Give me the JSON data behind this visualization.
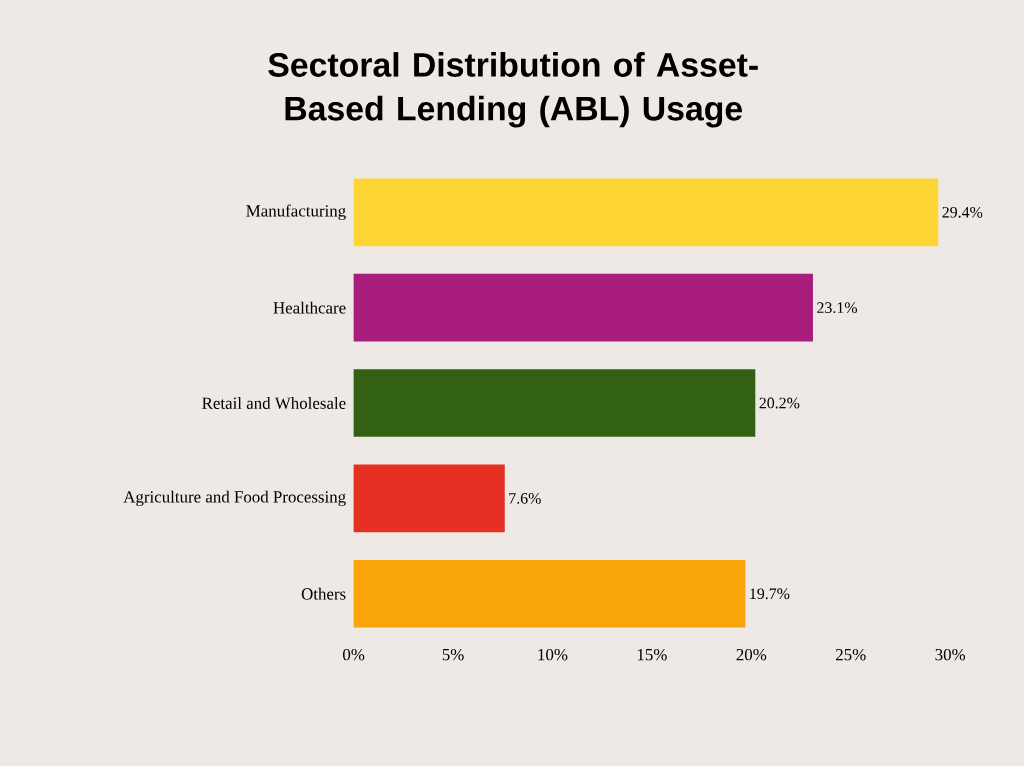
{
  "chart_data": {
    "type": "bar",
    "orientation": "horizontal",
    "title": "Sectoral Distribution of Asset-Based Lending (ABL) Usage",
    "categories": [
      "Manufacturing",
      "Healthcare",
      "Retail and Wholesale",
      "Agriculture and Food Processing",
      "Others"
    ],
    "values": [
      29.4,
      23.1,
      20.2,
      7.6,
      19.7
    ],
    "colors": [
      "#fdd535",
      "#a91e7c",
      "#336114",
      "#e63023",
      "#f9a40a"
    ],
    "value_labels": [
      "29.4%",
      "23.1%",
      "20.2%",
      "7.6%",
      "19.7%"
    ],
    "xlim": [
      0,
      30
    ],
    "xticks": [
      {
        "value": 0,
        "label": "0%"
      },
      {
        "value": 5,
        "label": "5%"
      },
      {
        "value": 10,
        "label": "10%"
      },
      {
        "value": 15,
        "label": "15%"
      },
      {
        "value": 20,
        "label": "20%"
      },
      {
        "value": 25,
        "label": "25%"
      },
      {
        "value": 30,
        "label": "30%"
      }
    ]
  }
}
